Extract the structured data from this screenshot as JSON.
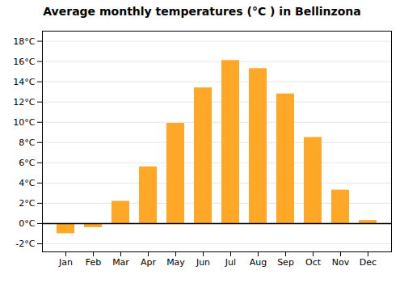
{
  "chart_data": {
    "type": "bar",
    "title": "Average monthly temperatures (°C ) in Bellinzona",
    "categories": [
      "Jan",
      "Feb",
      "Mar",
      "Apr",
      "May",
      "Jun",
      "Jul",
      "Aug",
      "Sep",
      "Oct",
      "Nov",
      "Dec"
    ],
    "values": [
      -1.0,
      -0.4,
      2.2,
      5.6,
      9.9,
      13.4,
      16.1,
      15.3,
      12.8,
      8.5,
      3.3,
      0.3
    ],
    "color": "#FFA726",
    "ylim": [
      -2.8,
      19.0
    ],
    "yticks": [
      {
        "value": -2,
        "label": "-2°C"
      },
      {
        "value": 0,
        "label": "0°C"
      },
      {
        "value": 2,
        "label": "2°C"
      },
      {
        "value": 4,
        "label": "4°C"
      },
      {
        "value": 6,
        "label": "6°C"
      },
      {
        "value": 8,
        "label": "8°C"
      },
      {
        "value": 10,
        "label": "10°C"
      },
      {
        "value": 12,
        "label": "12°C"
      },
      {
        "value": 14,
        "label": "14°C"
      },
      {
        "value": 16,
        "label": "16°C"
      },
      {
        "value": 18,
        "label": "18°C"
      }
    ],
    "grid": true
  }
}
